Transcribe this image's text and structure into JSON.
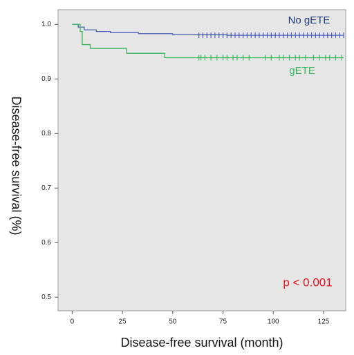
{
  "chart_data": {
    "type": "line",
    "xlabel": "Disease-free survival (month)",
    "ylabel": "Disease-free survival (%)",
    "annotation": "p < 0.001",
    "xlim": [
      -7,
      136
    ],
    "ylim": [
      0.475,
      1.027
    ],
    "xticks": [
      0,
      25,
      50,
      75,
      100,
      125
    ],
    "yticks": [
      0.5,
      0.6,
      0.7,
      0.8,
      0.9,
      {
        "value": 1.0,
        "label": "1.0"
      }
    ],
    "series": [
      {
        "name": "No gETE",
        "color": "#4a5fb5",
        "label_color": "#1f3a7a",
        "x": [
          0,
          3,
          3,
          6,
          6,
          12,
          12,
          19,
          19,
          33,
          33,
          50,
          50,
          77,
          77,
          135
        ],
        "values": [
          1,
          1,
          0.995,
          0.995,
          0.99,
          0.99,
          0.987,
          0.987,
          0.985,
          0.985,
          0.983,
          0.983,
          0.981,
          0.981,
          0.98,
          0.98
        ],
        "censored": [
          63,
          65,
          67,
          69,
          71,
          73,
          75,
          77,
          79,
          81,
          83,
          85,
          87,
          89,
          91,
          93,
          95,
          97,
          99,
          101,
          103,
          105,
          107,
          109,
          111,
          113,
          115,
          117,
          119,
          121,
          123,
          125,
          127,
          129,
          131,
          133,
          135
        ]
      },
      {
        "name": "gETE",
        "color": "#3cb45a",
        "label_color": "#3cb45a",
        "x": [
          0,
          4,
          4,
          5,
          5,
          9,
          9,
          27,
          27,
          46,
          46,
          135
        ],
        "values": [
          1,
          1,
          0.987,
          0.987,
          0.963,
          0.963,
          0.956,
          0.956,
          0.947,
          0.947,
          0.939,
          0.939
        ],
        "censored": [
          63,
          64,
          66,
          69,
          72,
          75,
          77,
          80,
          82,
          85,
          88,
          96,
          99,
          103,
          105,
          108,
          111,
          113,
          116,
          120,
          123,
          126,
          128,
          131,
          134
        ]
      }
    ]
  }
}
